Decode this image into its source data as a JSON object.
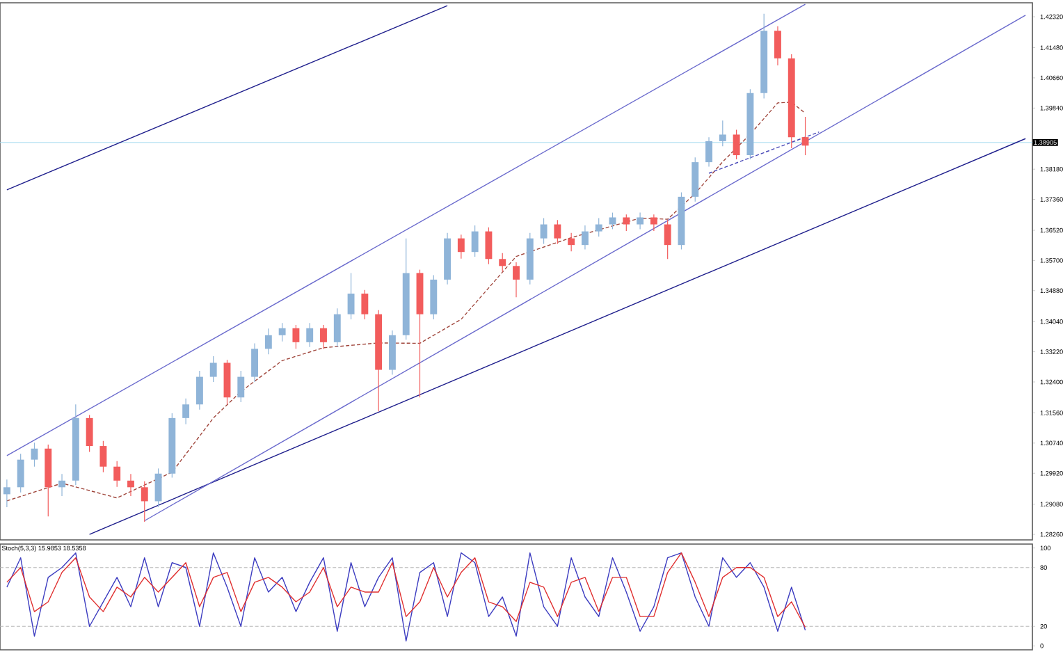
{
  "chart_data": [
    {
      "type": "candlestick",
      "categories": [
        null,
        null,
        null,
        null,
        null,
        null,
        null,
        null,
        null,
        null,
        null,
        null,
        null,
        null,
        null,
        null,
        null,
        null,
        null,
        null,
        null,
        null,
        null,
        null,
        null,
        null,
        null,
        null,
        null,
        null,
        null,
        null,
        null,
        null,
        null,
        null,
        null,
        null,
        null,
        null,
        null,
        null,
        null,
        null,
        null,
        null,
        null,
        null,
        null,
        null,
        null,
        null,
        null,
        null,
        null,
        null,
        null,
        null,
        null,
        null,
        null,
        null,
        null,
        null,
        null,
        null,
        null,
        null,
        null,
        null,
        null,
        null,
        null,
        null,
        null
      ],
      "ohlc": [
        [
          1.2935,
          1.2975,
          1.29,
          1.2954
        ],
        [
          1.2954,
          1.3045,
          1.294,
          1.3029
        ],
        [
          1.3029,
          1.3075,
          1.301,
          1.3059
        ],
        [
          1.3059,
          1.307,
          1.2875,
          1.2954
        ],
        [
          1.2954,
          1.299,
          1.293,
          1.2972
        ],
        [
          1.2972,
          1.3179,
          1.296,
          1.3142
        ],
        [
          1.3142,
          1.315,
          1.305,
          1.3066
        ],
        [
          1.3066,
          1.308,
          1.2995,
          1.301
        ],
        [
          1.301,
          1.3025,
          1.2955,
          1.2972
        ],
        [
          1.2972,
          1.299,
          1.293,
          1.2954
        ],
        [
          1.2954,
          1.297,
          1.286,
          1.2916
        ],
        [
          1.2916,
          1.3005,
          1.29,
          1.2991
        ],
        [
          1.2991,
          1.3155,
          1.298,
          1.3142
        ],
        [
          1.3142,
          1.3195,
          1.3125,
          1.3179
        ],
        [
          1.3179,
          1.327,
          1.3165,
          1.3254
        ],
        [
          1.3254,
          1.331,
          1.324,
          1.3292
        ],
        [
          1.3292,
          1.33,
          1.318,
          1.3198
        ],
        [
          1.3198,
          1.327,
          1.3185,
          1.3254
        ],
        [
          1.3254,
          1.3345,
          1.324,
          1.333
        ],
        [
          1.333,
          1.3385,
          1.3315,
          1.3367
        ],
        [
          1.3367,
          1.34,
          1.335,
          1.3386
        ],
        [
          1.3386,
          1.3395,
          1.333,
          1.3348
        ],
        [
          1.3348,
          1.34,
          1.3335,
          1.3386
        ],
        [
          1.3386,
          1.3395,
          1.333,
          1.3348
        ],
        [
          1.3348,
          1.344,
          1.3335,
          1.3424
        ],
        [
          1.3424,
          1.3536,
          1.341,
          1.348
        ],
        [
          1.348,
          1.349,
          1.341,
          1.3424
        ],
        [
          1.3424,
          1.3435,
          1.316,
          1.3273
        ],
        [
          1.3273,
          1.338,
          1.326,
          1.3367
        ],
        [
          1.3367,
          1.363,
          1.3355,
          1.3536
        ],
        [
          1.3536,
          1.3545,
          1.3198,
          1.3424
        ],
        [
          1.3424,
          1.353,
          1.341,
          1.3518
        ],
        [
          1.3518,
          1.3645,
          1.3505,
          1.363
        ],
        [
          1.363,
          1.364,
          1.3575,
          1.3593
        ],
        [
          1.3593,
          1.3665,
          1.358,
          1.3649
        ],
        [
          1.3649,
          1.366,
          1.356,
          1.3574
        ],
        [
          1.3574,
          1.359,
          1.354,
          1.3555
        ],
        [
          1.3555,
          1.3565,
          1.347,
          1.3518
        ],
        [
          1.3518,
          1.3645,
          1.3505,
          1.363
        ],
        [
          1.363,
          1.3685,
          1.3615,
          1.3668
        ],
        [
          1.3668,
          1.368,
          1.3615,
          1.363
        ],
        [
          1.363,
          1.3645,
          1.3595,
          1.3612
        ],
        [
          1.3612,
          1.3665,
          1.36,
          1.3649
        ],
        [
          1.3649,
          1.3685,
          1.3635,
          1.3668
        ],
        [
          1.3668,
          1.37,
          1.3655,
          1.3687
        ],
        [
          1.3687,
          1.3695,
          1.365,
          1.3668
        ],
        [
          1.3668,
          1.37,
          1.3655,
          1.3687
        ],
        [
          1.3687,
          1.3695,
          1.365,
          1.3668
        ],
        [
          1.3668,
          1.368,
          1.3574,
          1.3612
        ],
        [
          1.3612,
          1.3755,
          1.36,
          1.3743
        ],
        [
          1.3743,
          1.385,
          1.373,
          1.3837
        ],
        [
          1.3837,
          1.3905,
          1.3825,
          1.3894
        ],
        [
          1.3894,
          1.395,
          1.388,
          1.3912
        ],
        [
          1.3912,
          1.3925,
          1.3845,
          1.3856
        ],
        [
          1.3856,
          1.4035,
          1.3845,
          1.4025
        ],
        [
          1.4025,
          1.424,
          1.401,
          1.4194
        ],
        [
          1.4194,
          1.4206,
          1.41,
          1.4119
        ],
        [
          1.4119,
          1.413,
          1.3875,
          1.3905
        ],
        [
          1.3905,
          1.396,
          1.3856,
          1.3882
        ],
        null,
        null,
        null,
        null,
        null,
        null,
        null,
        null,
        null,
        null,
        null,
        null,
        null,
        null,
        null,
        null
      ],
      "colors": [
        "#8fb4d8",
        "#8fb4d8",
        "#8fb4d8",
        "#f25c5c",
        "#8fb4d8",
        "#8fb4d8",
        "#f25c5c",
        "#f25c5c",
        "#f25c5c",
        "#f25c5c",
        "#f25c5c",
        "#8fb4d8",
        "#8fb4d8",
        "#8fb4d8",
        "#8fb4d8",
        "#8fb4d8",
        "#f25c5c",
        "#8fb4d8",
        "#8fb4d8",
        "#8fb4d8",
        "#8fb4d8",
        "#f25c5c",
        "#8fb4d8",
        "#f25c5c",
        "#8fb4d8",
        "#8fb4d8",
        "#f25c5c",
        "#f25c5c",
        "#8fb4d8",
        "#8fb4d8",
        "#f25c5c",
        "#8fb4d8",
        "#8fb4d8",
        "#f25c5c",
        "#8fb4d8",
        "#f25c5c",
        "#f25c5c",
        "#f25c5c",
        "#8fb4d8",
        "#8fb4d8",
        "#f25c5c",
        "#f25c5c",
        "#8fb4d8",
        "#8fb4d8",
        "#8fb4d8",
        "#f25c5c",
        "#8fb4d8",
        "#f25c5c",
        "#f25c5c",
        "#8fb4d8",
        "#8fb4d8",
        "#8fb4d8",
        "#8fb4d8",
        "#f25c5c",
        "#8fb4d8",
        "#8fb4d8",
        "#f25c5c",
        "#f25c5c",
        "#f25c5c",
        null,
        null,
        null,
        null,
        null,
        null,
        null,
        null,
        null,
        null,
        null,
        null,
        null,
        null,
        null,
        null
      ],
      "series": [
        {
          "type": "line",
          "color": "#a0463c",
          "line_style": "dashed",
          "values": [
            1.2917,
            null,
            null,
            null,
            1.2965,
            null,
            null,
            null,
            1.2925,
            null,
            null,
            null,
            1.2995,
            null,
            null,
            1.3142,
            null,
            1.3214,
            null,
            null,
            1.3298,
            null,
            null,
            1.3333,
            null,
            null,
            null,
            1.3346,
            null,
            null,
            1.3345,
            null,
            null,
            1.341,
            null,
            null,
            null,
            1.3581,
            null,
            null,
            null,
            1.3632,
            null,
            null,
            null,
            null,
            1.3685,
            null,
            1.3682,
            null,
            1.3752,
            null,
            1.3838,
            null,
            1.3913,
            null,
            1.3998,
            1.4,
            1.397,
            null,
            null,
            null,
            null,
            null,
            null,
            null,
            null,
            null,
            null,
            null,
            null,
            null,
            null,
            null,
            null
          ]
        },
        {
          "type": "line",
          "color": "#1e1e8c",
          "line_style": "solid",
          "values": [
            1.3762,
            null,
            null,
            null,
            null,
            null,
            null,
            null,
            null,
            null,
            null,
            null,
            null,
            null,
            null,
            null,
            null,
            null,
            null,
            null,
            null,
            null,
            null,
            null,
            null,
            null,
            null,
            null,
            null,
            null,
            null,
            null,
            1.4262,
            null,
            null,
            null,
            null,
            null,
            null,
            null,
            null,
            null,
            null,
            null,
            null,
            null,
            null,
            null,
            null,
            null,
            null,
            null,
            null,
            null,
            null,
            null,
            null,
            null,
            null,
            null,
            null,
            null,
            null,
            null,
            null,
            null,
            null,
            null,
            null,
            null,
            null,
            null,
            null,
            null,
            null
          ]
        },
        {
          "type": "line",
          "color": "#1e1e8c",
          "line_style": "solid",
          "values": [
            null,
            null,
            null,
            null,
            null,
            null,
            1.2826,
            null,
            null,
            null,
            null,
            null,
            null,
            null,
            null,
            null,
            null,
            null,
            null,
            null,
            null,
            null,
            null,
            null,
            null,
            null,
            null,
            null,
            null,
            null,
            null,
            null,
            null,
            null,
            null,
            null,
            null,
            null,
            null,
            null,
            null,
            null,
            null,
            null,
            null,
            null,
            null,
            null,
            null,
            null,
            null,
            null,
            null,
            null,
            null,
            null,
            null,
            null,
            null,
            null,
            null,
            null,
            null,
            null,
            null,
            null,
            null,
            null,
            null,
            null,
            null,
            null,
            null,
            null,
            1.3901
          ]
        },
        {
          "type": "line",
          "color": "#6a6acd",
          "line_style": "solid",
          "values": [
            1.304,
            null,
            null,
            null,
            null,
            null,
            null,
            null,
            null,
            null,
            null,
            null,
            null,
            null,
            null,
            null,
            null,
            null,
            null,
            null,
            null,
            null,
            null,
            null,
            null,
            null,
            null,
            null,
            null,
            null,
            null,
            null,
            null,
            null,
            null,
            null,
            null,
            null,
            null,
            null,
            null,
            null,
            null,
            null,
            null,
            null,
            null,
            null,
            null,
            null,
            null,
            null,
            null,
            null,
            null,
            null,
            null,
            null,
            1.4266,
            null,
            null,
            null,
            null,
            null,
            null,
            null,
            null,
            null,
            null,
            null,
            null,
            null,
            null,
            null,
            null
          ]
        },
        {
          "type": "line",
          "color": "#6a6acd",
          "line_style": "solid",
          "values": [
            null,
            null,
            null,
            null,
            null,
            null,
            null,
            null,
            null,
            null,
            1.2863,
            null,
            null,
            null,
            null,
            null,
            null,
            null,
            null,
            null,
            null,
            null,
            null,
            null,
            null,
            null,
            null,
            null,
            null,
            null,
            null,
            null,
            null,
            null,
            null,
            null,
            null,
            null,
            null,
            null,
            null,
            null,
            null,
            null,
            null,
            null,
            null,
            null,
            null,
            null,
            null,
            null,
            null,
            null,
            null,
            null,
            null,
            null,
            null,
            null,
            null,
            null,
            null,
            null,
            null,
            null,
            null,
            null,
            null,
            null,
            null,
            null,
            null,
            null,
            1.4236
          ]
        },
        {
          "type": "line",
          "color": "#4a4ab8",
          "line_style": "dashed",
          "values": [
            null,
            null,
            null,
            null,
            null,
            null,
            null,
            null,
            null,
            null,
            null,
            null,
            null,
            null,
            null,
            null,
            null,
            null,
            null,
            null,
            null,
            null,
            null,
            null,
            null,
            null,
            null,
            null,
            null,
            null,
            null,
            null,
            null,
            null,
            null,
            null,
            null,
            null,
            null,
            null,
            null,
            null,
            null,
            null,
            null,
            null,
            null,
            null,
            null,
            null,
            null,
            1.3807,
            null,
            null,
            null,
            null,
            null,
            null,
            null,
            1.3919,
            null,
            null,
            null,
            null,
            null,
            null,
            null,
            null,
            null,
            null,
            null,
            null,
            null,
            null,
            null
          ]
        }
      ],
      "ylim": [
        1.2811,
        1.427
      ],
      "yticks": [
        {
          "value": 1.4232,
          "label": "1.42320"
        },
        {
          "value": 1.4148,
          "label": "1.41480"
        },
        {
          "value": 1.4066,
          "label": "1.40660"
        },
        {
          "value": 1.3984,
          "label": "1.39840"
        },
        {
          "value": 1.3818,
          "label": "1.38180"
        },
        {
          "value": 1.3736,
          "label": "1.37360"
        },
        {
          "value": 1.3652,
          "label": "1.36520"
        },
        {
          "value": 1.357,
          "label": "1.35700"
        },
        {
          "value": 1.3488,
          "label": "1.34880"
        },
        {
          "value": 1.3404,
          "label": "1.34040"
        },
        {
          "value": 1.3322,
          "label": "1.33220"
        },
        {
          "value": 1.324,
          "label": "1.32400"
        },
        {
          "value": 1.3156,
          "label": "1.31560"
        },
        {
          "value": 1.3074,
          "label": "1.30740"
        },
        {
          "value": 1.2992,
          "label": "1.29920"
        },
        {
          "value": 1.2908,
          "label": "1.29080"
        },
        {
          "value": 1.2826,
          "label": "1.28260"
        }
      ],
      "ref_lines": [
        {
          "axis": "y",
          "value": 1.38905,
          "label": "1.38905",
          "color": "#a8dcef"
        }
      ],
      "tick_labels": "y"
    },
    {
      "type": "line",
      "title": "Stoch(5,3,3) 15.9853 18.5358",
      "categories": [
        null,
        null,
        null,
        null,
        null,
        null,
        null,
        null,
        null,
        null,
        null,
        null,
        null,
        null,
        null,
        null,
        null,
        null,
        null,
        null,
        null,
        null,
        null,
        null,
        null,
        null,
        null,
        null,
        null,
        null,
        null,
        null,
        null,
        null,
        null,
        null,
        null,
        null,
        null,
        null,
        null,
        null,
        null,
        null,
        null,
        null,
        null,
        null,
        null,
        null,
        null,
        null,
        null,
        null,
        null,
        null,
        null,
        null,
        null,
        null,
        null,
        null,
        null,
        null,
        null,
        null,
        null,
        null,
        null,
        null,
        null,
        null,
        null,
        null,
        null
      ],
      "series": [
        {
          "color": "#3c3cc0",
          "values": [
            60,
            90,
            10,
            70,
            80,
            95,
            20,
            45,
            70,
            40,
            90,
            40,
            85,
            80,
            20,
            95,
            60,
            20,
            90,
            55,
            70,
            35,
            65,
            90,
            15,
            85,
            40,
            70,
            90,
            5,
            75,
            85,
            30,
            95,
            85,
            30,
            50,
            10,
            95,
            40,
            20,
            90,
            50,
            30,
            90,
            55,
            15,
            40,
            90,
            95,
            50,
            20,
            90,
            70,
            85,
            60,
            15,
            60,
            16,
            null,
            null,
            null,
            null,
            null,
            null,
            null,
            null,
            null,
            null,
            null,
            null,
            null,
            null,
            null,
            null
          ]
        },
        {
          "color": "#e03030",
          "values": [
            65,
            80,
            35,
            45,
            75,
            90,
            50,
            35,
            60,
            50,
            70,
            55,
            70,
            85,
            40,
            70,
            75,
            35,
            65,
            70,
            60,
            45,
            55,
            80,
            40,
            60,
            55,
            55,
            85,
            30,
            45,
            80,
            50,
            75,
            90,
            45,
            40,
            25,
            65,
            60,
            30,
            65,
            70,
            35,
            70,
            70,
            30,
            30,
            75,
            95,
            65,
            30,
            70,
            80,
            80,
            70,
            30,
            45,
            19,
            null,
            null,
            null,
            null,
            null,
            null,
            null,
            null,
            null,
            null,
            null,
            null,
            null,
            null,
            null,
            null
          ]
        }
      ],
      "ylim": [
        -4,
        104
      ],
      "yticks": [
        0,
        20,
        80,
        100
      ],
      "ref_lines": [
        {
          "axis": "y",
          "value": 80,
          "color": "#b4b4b4",
          "line_style": "dashed"
        },
        {
          "axis": "y",
          "value": 20,
          "color": "#b4b4b4",
          "line_style": "dashed"
        }
      ],
      "tick_labels": "y"
    }
  ]
}
